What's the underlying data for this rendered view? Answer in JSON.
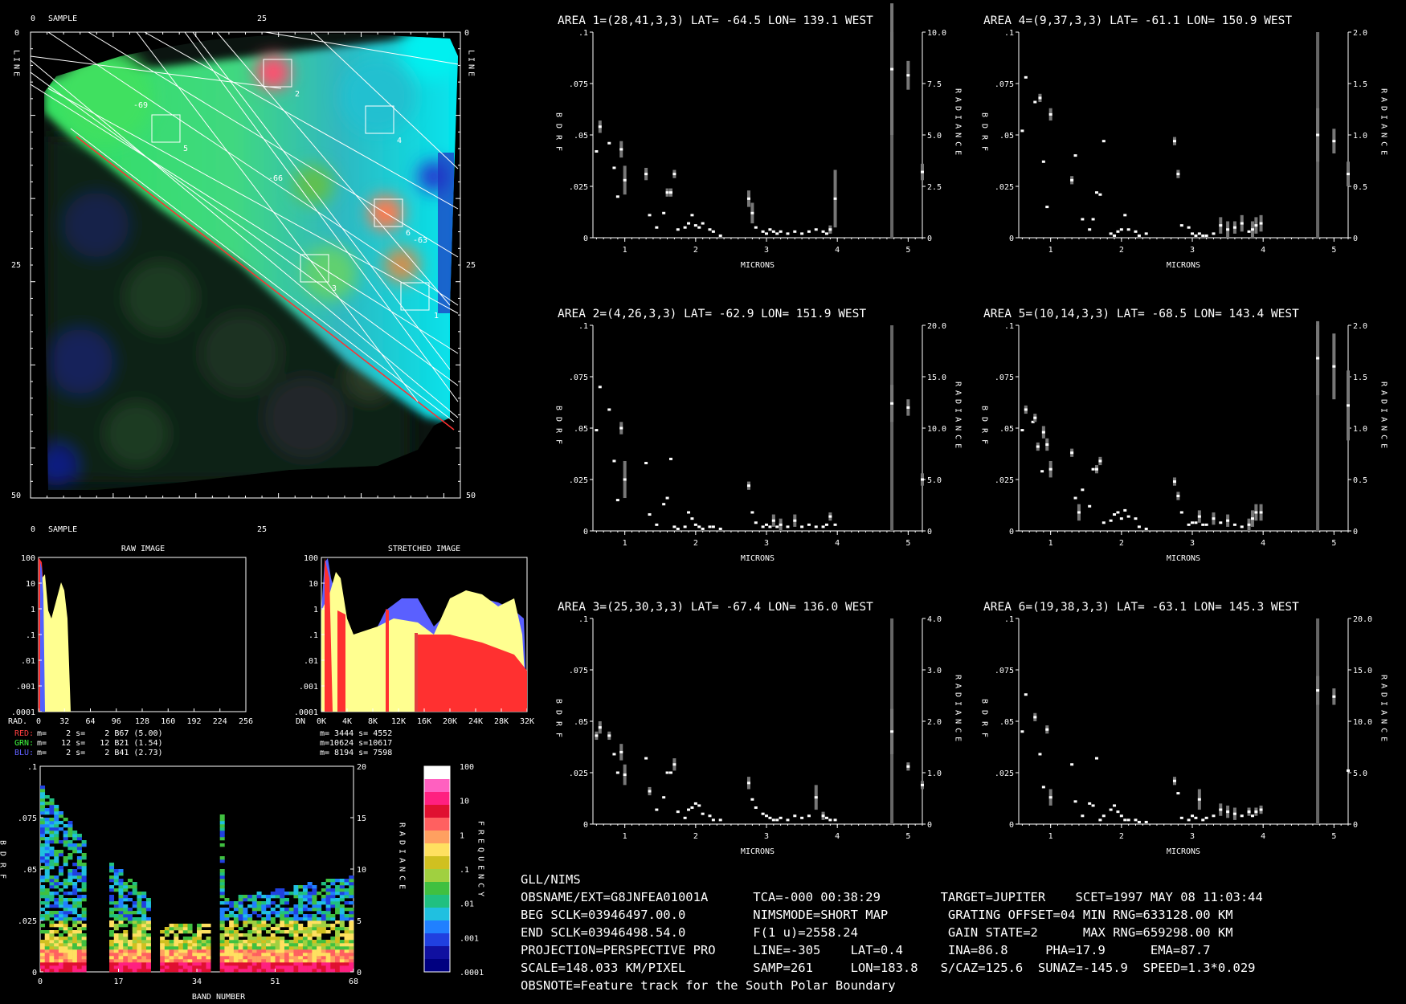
{
  "image_panel": {
    "axis_top": "SAMPLE",
    "axis_bottom": "SAMPLE",
    "axis_side": "LINE",
    "ticks_x": [
      "0",
      "25"
    ],
    "ticks_y": [
      "0",
      "25",
      "50"
    ],
    "box_labels": [
      "1",
      "2",
      "3",
      "4",
      "5",
      "6"
    ],
    "contour_labels": [
      "-69",
      "-66",
      "-63"
    ]
  },
  "histograms": {
    "raw": {
      "title": "RAW IMAGE",
      "y_ticks": [
        "100",
        "10",
        "1",
        ".1",
        ".01",
        ".001",
        ".0001"
      ],
      "x_axis_label": "RAD.",
      "x_ticks": [
        "0",
        "32",
        "64",
        "96",
        "128",
        "160",
        "192",
        "224",
        "256"
      ]
    },
    "stretched": {
      "title": "STRETCHED IMAGE",
      "y_ticks": [
        "100",
        "10",
        "1",
        ".1",
        ".01",
        ".001",
        ".0001"
      ],
      "x_axis_label": "DN",
      "x_ticks": [
        "0K",
        "4K",
        "8K",
        "12K",
        "16K",
        "20K",
        "24K",
        "28K",
        "32K"
      ]
    },
    "channel_stats": [
      {
        "label": "RED:",
        "text": "m=    2 s=    2 B67 (5.00)",
        "color": "#ff4040"
      },
      {
        "label": "GRN:",
        "text": "m=   12 s=   12 B21 (1.54)",
        "color": "#40ff40"
      },
      {
        "label": "BLU:",
        "text": "m=    2 s=    2 B41 (2.73)",
        "color": "#6060ff"
      }
    ],
    "stretch_stats": [
      "m= 3444 s= 4552",
      "m=10624 s=10617",
      "m= 8194 s= 7598"
    ]
  },
  "density_plot": {
    "left_label": "BDRF",
    "right_label": "RADIANCE",
    "x_label": "BAND NUMBER",
    "x_ticks": [
      "0",
      "17",
      "34",
      "51",
      "68"
    ],
    "y_ticks_left": [
      ".1",
      ".075",
      ".05",
      ".025",
      "0"
    ],
    "y_ticks_right": [
      "20",
      "15",
      "10",
      "5",
      "0"
    ],
    "colorbar_label": "FREQUENCY",
    "colorbar_ticks": [
      "100",
      "10",
      "1",
      ".1",
      ".01",
      ".001",
      ".0001"
    ],
    "colors": [
      "#ffffff",
      "#ff60c0",
      "#ff2080",
      "#e01030",
      "#ff6060",
      "#ffa060",
      "#ffe060",
      "#d0c020",
      "#a0d040",
      "#40c040",
      "#20c080",
      "#20c0e0",
      "#2080ff",
      "#2040e0",
      "#1010a0",
      "#000080"
    ]
  },
  "chart_data": [
    {
      "type": "scatter",
      "title": "AREA 1=(28,41,3,3) LAT= -64.5 LON= 139.1 WEST",
      "xlabel": "MICRONS",
      "ylabel": "BDRF",
      "y2label": "RADIANCE",
      "x_ticks": [
        "1",
        "2",
        "3",
        "4",
        "5"
      ],
      "y_ticks": [
        ".1",
        ".075",
        ".05",
        ".025",
        "0"
      ],
      "y2_ticks": [
        "10.0",
        "7.5",
        "5.0",
        "2.5",
        "0"
      ],
      "xlim": [
        0.55,
        5.2
      ],
      "ylim": [
        0,
        0.1
      ],
      "x": [
        0.6,
        0.65,
        0.78,
        0.85,
        0.9,
        0.95,
        1.0,
        1.3,
        1.35,
        1.45,
        1.55,
        1.6,
        1.65,
        1.7,
        1.75,
        1.85,
        1.9,
        1.95,
        2.0,
        2.05,
        2.1,
        2.2,
        2.25,
        2.35,
        2.75,
        2.8,
        2.85,
        2.95,
        3.0,
        3.05,
        3.1,
        3.15,
        3.2,
        3.3,
        3.4,
        3.5,
        3.6,
        3.7,
        3.8,
        3.85,
        3.9,
        3.97,
        4.77,
        5.0,
        5.2
      ],
      "y": [
        0.042,
        0.054,
        0.046,
        0.034,
        0.02,
        0.043,
        0.028,
        0.031,
        0.011,
        0.005,
        0.012,
        0.022,
        0.022,
        0.031,
        0.004,
        0.005,
        0.007,
        0.011,
        0.006,
        0.005,
        0.007,
        0.004,
        0.003,
        0.001,
        0.019,
        0.012,
        0.005,
        0.003,
        0.002,
        0.004,
        0.003,
        0.002,
        0.003,
        0.002,
        0.003,
        0.002,
        0.003,
        0.004,
        0.003,
        0.002,
        0.004,
        0.019,
        0.082,
        0.079,
        0.032
      ],
      "err": [
        0,
        0.003,
        0,
        0,
        0,
        0.004,
        0.007,
        0.003,
        0,
        0,
        0,
        0.002,
        0.002,
        0.002,
        0,
        0,
        0,
        0,
        0,
        0,
        0,
        0,
        0,
        0,
        0.004,
        0.005,
        0,
        0,
        0,
        0,
        0,
        0,
        0,
        0,
        0,
        0,
        0,
        0,
        0,
        0,
        0.002,
        0.014,
        0.032,
        0.007,
        0.004
      ]
    },
    {
      "type": "scatter",
      "title": "AREA 4=(9,37,3,3) LAT= -61.1 LON= 150.9 WEST",
      "xlabel": "MICRONS",
      "ylabel": "BDRF",
      "y2label": "RADIANCE",
      "x_ticks": [
        "1",
        "2",
        "3",
        "4",
        "5"
      ],
      "y_ticks": [
        ".1",
        ".075",
        ".05",
        ".025",
        "0"
      ],
      "y2_ticks": [
        "2.0",
        "1.5",
        "1.0",
        "0.5",
        "0"
      ],
      "xlim": [
        0.55,
        5.2
      ],
      "ylim": [
        0,
        0.1
      ],
      "x": [
        0.6,
        0.65,
        0.78,
        0.85,
        0.9,
        0.95,
        1.0,
        1.3,
        1.35,
        1.45,
        1.55,
        1.6,
        1.65,
        1.7,
        1.75,
        1.85,
        1.9,
        1.95,
        2.0,
        2.05,
        2.1,
        2.2,
        2.25,
        2.35,
        2.75,
        2.8,
        2.85,
        2.95,
        3.0,
        3.05,
        3.1,
        3.15,
        3.2,
        3.3,
        3.4,
        3.5,
        3.6,
        3.7,
        3.8,
        3.85,
        3.9,
        3.97,
        4.77,
        5.0,
        5.2
      ],
      "y": [
        0.052,
        0.078,
        0.066,
        0.068,
        0.037,
        0.015,
        0.06,
        0.028,
        0.04,
        0.009,
        0.004,
        0.009,
        0.022,
        0.021,
        0.047,
        0.002,
        0.001,
        0.003,
        0.004,
        0.011,
        0.004,
        0.003,
        0.001,
        0.002,
        0.047,
        0.031,
        0.006,
        0.005,
        0.002,
        0.001,
        0.002,
        0.001,
        0.001,
        0.002,
        0.006,
        0.004,
        0.005,
        0.007,
        0.003,
        0.004,
        0.006,
        0.007,
        0.05,
        0.047,
        0.031
      ],
      "err": [
        0,
        0,
        0,
        0.002,
        0,
        0,
        0.003,
        0.002,
        0,
        0,
        0,
        0,
        0,
        0,
        0,
        0,
        0,
        0,
        0,
        0,
        0,
        0,
        0,
        0,
        0.002,
        0.002,
        0,
        0,
        0,
        0,
        0,
        0,
        0,
        0,
        0.004,
        0.004,
        0.003,
        0.004,
        0,
        0.004,
        0.004,
        0.004,
        0.013,
        0.006,
        0.006
      ]
    },
    {
      "type": "scatter",
      "title": "AREA 2=(4,26,3,3) LAT= -62.9 LON= 151.9 WEST",
      "xlabel": "MICRONS",
      "ylabel": "BDRF",
      "y2label": "RADIANCE",
      "x_ticks": [
        "1",
        "2",
        "3",
        "4",
        "5"
      ],
      "y_ticks": [
        ".1",
        ".075",
        ".05",
        ".025",
        "0"
      ],
      "y2_ticks": [
        "20.0",
        "15.0",
        "10.0",
        "5.0",
        "0"
      ],
      "xlim": [
        0.55,
        5.2
      ],
      "ylim": [
        0,
        0.1
      ],
      "x": [
        0.6,
        0.65,
        0.78,
        0.85,
        0.9,
        0.95,
        1.0,
        1.3,
        1.35,
        1.45,
        1.55,
        1.6,
        1.65,
        1.7,
        1.75,
        1.85,
        1.9,
        1.95,
        2.0,
        2.05,
        2.1,
        2.2,
        2.25,
        2.35,
        2.75,
        2.8,
        2.85,
        2.95,
        3.0,
        3.05,
        3.1,
        3.15,
        3.2,
        3.3,
        3.4,
        3.5,
        3.6,
        3.7,
        3.8,
        3.85,
        3.9,
        3.97,
        4.77,
        5.0,
        5.2
      ],
      "y": [
        0.049,
        0.07,
        0.059,
        0.034,
        0.015,
        0.05,
        0.025,
        0.033,
        0.008,
        0.003,
        0.013,
        0.016,
        0.035,
        0.002,
        0.001,
        0.002,
        0.009,
        0.006,
        0.003,
        0.002,
        0.001,
        0.002,
        0.002,
        0.001,
        0.022,
        0.009,
        0.004,
        0.002,
        0.003,
        0.002,
        0.005,
        0.002,
        0.003,
        0.002,
        0.005,
        0.002,
        0.003,
        0.002,
        0.002,
        0.003,
        0.007,
        0.003,
        0.062,
        0.06,
        0.025
      ],
      "err": [
        0,
        0,
        0,
        0,
        0,
        0.003,
        0.009,
        0,
        0,
        0,
        0,
        0,
        0,
        0,
        0,
        0,
        0,
        0,
        0,
        0,
        0,
        0,
        0,
        0,
        0.002,
        0,
        0,
        0,
        0,
        0,
        0.003,
        0,
        0.003,
        0,
        0.003,
        0,
        0,
        0,
        0,
        0,
        0.002,
        0,
        0.009,
        0.004,
        0.003
      ]
    },
    {
      "type": "scatter",
      "title": "AREA 5=(10,14,3,3) LAT= -68.5 LON= 143.4 WEST",
      "xlabel": "MICRONS",
      "ylabel": "BDRF",
      "y2label": "RADIANCE",
      "x_ticks": [
        "1",
        "2",
        "3",
        "4",
        "5"
      ],
      "y_ticks": [
        ".1",
        ".075",
        ".05",
        ".025",
        "0"
      ],
      "y2_ticks": [
        "2.0",
        "1.5",
        "1.0",
        "0.5",
        "0"
      ],
      "xlim": [
        0.55,
        5.2
      ],
      "ylim": [
        0,
        0.1
      ],
      "x": [
        0.6,
        0.65,
        0.75,
        0.78,
        0.82,
        0.88,
        0.9,
        0.95,
        1.0,
        1.3,
        1.35,
        1.4,
        1.45,
        1.55,
        1.6,
        1.65,
        1.7,
        1.75,
        1.85,
        1.9,
        1.95,
        2.0,
        2.05,
        2.1,
        2.2,
        2.25,
        2.35,
        2.75,
        2.8,
        2.85,
        2.95,
        3.0,
        3.05,
        3.1,
        3.15,
        3.2,
        3.3,
        3.4,
        3.5,
        3.6,
        3.7,
        3.8,
        3.85,
        3.9,
        3.97,
        4.77,
        5.0,
        5.2
      ],
      "y": [
        0.049,
        0.059,
        0.053,
        0.055,
        0.041,
        0.029,
        0.048,
        0.042,
        0.03,
        0.038,
        0.016,
        0.009,
        0.02,
        0.012,
        0.03,
        0.03,
        0.034,
        0.004,
        0.005,
        0.008,
        0.009,
        0.006,
        0.01,
        0.007,
        0.006,
        0.002,
        0.001,
        0.024,
        0.017,
        0.009,
        0.003,
        0.004,
        0.004,
        0.007,
        0.003,
        0.003,
        0.006,
        0.004,
        0.005,
        0.003,
        0.002,
        0.003,
        0.006,
        0.009,
        0.009,
        0.084,
        0.08,
        0.061
      ],
      "err": [
        0,
        0.002,
        0,
        0.002,
        0.002,
        0,
        0.003,
        0.003,
        0.004,
        0.002,
        0,
        0.004,
        0,
        0,
        0,
        0.002,
        0.002,
        0,
        0,
        0,
        0,
        0,
        0,
        0,
        0,
        0,
        0,
        0.002,
        0.002,
        0,
        0,
        0,
        0,
        0.003,
        0,
        0,
        0.003,
        0,
        0.003,
        0,
        0,
        0.003,
        0.004,
        0.004,
        0.004,
        0.018,
        0.016,
        0.017
      ]
    },
    {
      "type": "scatter",
      "title": "AREA 3=(25,30,3,3) LAT= -67.4 LON= 136.0 WEST",
      "xlabel": "MICRONS",
      "ylabel": "BDRF",
      "y2label": "RADIANCE",
      "x_ticks": [
        "1",
        "2",
        "3",
        "4",
        "5"
      ],
      "y_ticks": [
        ".1",
        ".075",
        ".05",
        ".025",
        "0"
      ],
      "y2_ticks": [
        "4.0",
        "3.0",
        "2.0",
        "1.0",
        "0"
      ],
      "xlim": [
        0.55,
        5.2
      ],
      "ylim": [
        0,
        0.1
      ],
      "x": [
        0.6,
        0.65,
        0.78,
        0.85,
        0.9,
        0.95,
        1.0,
        1.3,
        1.35,
        1.45,
        1.55,
        1.6,
        1.65,
        1.7,
        1.75,
        1.85,
        1.9,
        1.95,
        2.0,
        2.05,
        2.1,
        2.2,
        2.25,
        2.35,
        2.75,
        2.8,
        2.85,
        2.95,
        3.0,
        3.05,
        3.1,
        3.15,
        3.2,
        3.3,
        3.4,
        3.5,
        3.6,
        3.7,
        3.8,
        3.85,
        3.9,
        3.97,
        4.77,
        5.0,
        5.2
      ],
      "y": [
        0.043,
        0.047,
        0.043,
        0.034,
        0.025,
        0.035,
        0.024,
        0.032,
        0.016,
        0.007,
        0.013,
        0.025,
        0.025,
        0.029,
        0.006,
        0.003,
        0.007,
        0.008,
        0.01,
        0.009,
        0.005,
        0.004,
        0.002,
        0.002,
        0.02,
        0.012,
        0.008,
        0.005,
        0.004,
        0.003,
        0.002,
        0.002,
        0.003,
        0.002,
        0.004,
        0.003,
        0.004,
        0.013,
        0.004,
        0.003,
        0.002,
        0.002,
        0.045,
        0.028,
        0.019
      ],
      "err": [
        0.002,
        0.003,
        0.002,
        0,
        0,
        0.004,
        0.005,
        0,
        0.002,
        0,
        0,
        0,
        0,
        0.003,
        0,
        0,
        0,
        0,
        0,
        0,
        0,
        0,
        0,
        0,
        0.003,
        0,
        0,
        0,
        0,
        0,
        0,
        0,
        0,
        0,
        0,
        0,
        0,
        0.006,
        0.002,
        0,
        0,
        0,
        0.011,
        0.002,
        0.002
      ]
    },
    {
      "type": "scatter",
      "title": "AREA 6=(19,38,3,3) LAT= -63.1 LON= 145.3 WEST",
      "xlabel": "MICRONS",
      "ylabel": "BDRF",
      "y2label": "RADIANCE",
      "x_ticks": [
        "1",
        "2",
        "3",
        "4",
        "5"
      ],
      "y_ticks": [
        ".1",
        ".075",
        ".05",
        ".025",
        "0"
      ],
      "y2_ticks": [
        "20.0",
        "15.0",
        "10.0",
        "5.0",
        "0"
      ],
      "xlim": [
        0.55,
        5.2
      ],
      "ylim": [
        0,
        0.1
      ],
      "x": [
        0.6,
        0.65,
        0.78,
        0.85,
        0.9,
        0.95,
        1.0,
        1.3,
        1.35,
        1.45,
        1.55,
        1.6,
        1.65,
        1.7,
        1.75,
        1.85,
        1.9,
        1.95,
        2.0,
        2.05,
        2.1,
        2.2,
        2.25,
        2.35,
        2.75,
        2.8,
        2.85,
        2.95,
        3.0,
        3.05,
        3.1,
        3.15,
        3.2,
        3.3,
        3.4,
        3.5,
        3.6,
        3.7,
        3.8,
        3.85,
        3.9,
        3.97,
        4.77,
        5.0,
        5.2
      ],
      "y": [
        0.045,
        0.063,
        0.052,
        0.034,
        0.018,
        0.046,
        0.013,
        0.029,
        0.011,
        0.004,
        0.01,
        0.009,
        0.032,
        0.002,
        0.004,
        0.007,
        0.009,
        0.006,
        0.004,
        0.002,
        0.002,
        0.002,
        0.001,
        0.001,
        0.021,
        0.015,
        0.003,
        0.002,
        0.004,
        0.003,
        0.012,
        0.002,
        0.003,
        0.004,
        0.007,
        0.006,
        0.005,
        0.004,
        0.006,
        0.004,
        0.006,
        0.007,
        0.065,
        0.062,
        0.026
      ],
      "err": [
        0,
        0,
        0.002,
        0,
        0,
        0.002,
        0.004,
        0,
        0,
        0,
        0,
        0,
        0,
        0,
        0,
        0,
        0,
        0,
        0,
        0,
        0,
        0,
        0,
        0,
        0.002,
        0,
        0,
        0,
        0,
        0,
        0.005,
        0,
        0,
        0,
        0.003,
        0.003,
        0.003,
        0,
        0.002,
        0,
        0.002,
        0.002,
        0.007,
        0.004,
        0
      ]
    }
  ],
  "info_block": {
    "lines": [
      "GLL/NIMS",
      "OBSNAME/EXT=G8JNFEA01001A      TCA=-000 00:38:29        TARGET=JUPITER    SCET=1997 MAY 08 11:03:44",
      "BEG SCLK=03946497.00.0         NIMSMODE=SHORT MAP        GRATING OFFSET=04 MIN RNG=633128.00 KM",
      "END SCLK=03946498.54.0         F(1 u)=2558.24            GAIN STATE=2      MAX RNG=659298.00 KM",
      "PROJECTION=PERSPECTIVE PRO     LINE=-305    LAT=0.4      INA=86.8     PHA=17.9      EMA=87.7",
      "SCALE=148.033 KM/PIXEL         SAMP=261     LON=183.8   S/CAZ=125.6  SUNAZ=-145.9  SPEED=1.3*0.029",
      "OBSNOTE=Feature track for the South Polar Boundary"
    ]
  }
}
